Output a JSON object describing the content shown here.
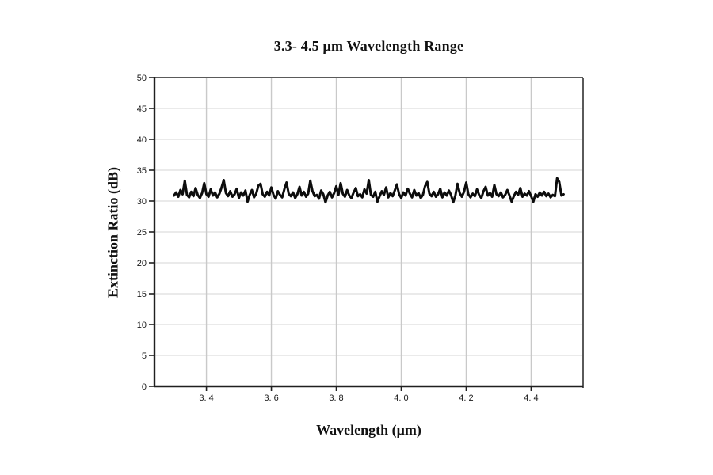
{
  "chart_data": {
    "type": "line",
    "title": "3.3- 4.5 μm Wavelength Range",
    "xlabel": "Wavelength (μm)",
    "ylabel": "Extinction Ratio (dB)",
    "xlim": [
      3.24,
      4.56
    ],
    "ylim": [
      0,
      50
    ],
    "grid": true,
    "legend": "none",
    "xticks": [
      3.4,
      3.6,
      3.8,
      4.0,
      4.2,
      4.4
    ],
    "xtick_labels": [
      "3. 4",
      "3. 6",
      "3. 8",
      "4. 0",
      "4. 2",
      "4. 4"
    ],
    "yticks": [
      0,
      5,
      10,
      15,
      20,
      25,
      30,
      35,
      40,
      45,
      50
    ],
    "ytick_labels": [
      "0",
      "5",
      "10",
      "15",
      "20",
      "25",
      "30",
      "35",
      "40",
      "45",
      "50"
    ],
    "style": {
      "line_color": "#0d0d0d",
      "line_width": 3,
      "hgrid_color": "#e4e4e4",
      "vgrid_color": "#c9c9c9",
      "axis_color": "#1f1f1f",
      "frame_color": "#5a5a5a",
      "tick_color": "#1f1f1f"
    },
    "series": [
      {
        "name": "Extinction Ratio",
        "x_start": 3.3,
        "x_end": 4.5,
        "mean_db": 31.2,
        "values": [
          30.9,
          31.4,
          30.7,
          31.8,
          31.1,
          33.3,
          31.0,
          30.6,
          31.5,
          30.8,
          32.1,
          31.0,
          30.5,
          31.3,
          32.9,
          31.1,
          30.7,
          31.9,
          30.9,
          31.4,
          30.6,
          31.2,
          32.2,
          33.4,
          31.3,
          30.8,
          31.6,
          30.7,
          31.1,
          32.0,
          30.5,
          31.4,
          30.9,
          31.7,
          29.9,
          31.0,
          31.8,
          30.6,
          31.2,
          32.5,
          32.8,
          31.1,
          30.7,
          31.5,
          30.9,
          32.2,
          31.0,
          30.4,
          31.6,
          31.0,
          30.6,
          31.9,
          33.0,
          31.2,
          30.8,
          31.4,
          30.5,
          31.1,
          32.3,
          30.9,
          31.5,
          30.7,
          31.2,
          33.3,
          31.6,
          30.8,
          31.0,
          30.4,
          31.7,
          31.1,
          29.8,
          30.9,
          31.5,
          30.6,
          31.3,
          32.4,
          31.0,
          32.9,
          31.2,
          30.7,
          31.8,
          30.9,
          30.5,
          31.4,
          32.1,
          30.8,
          31.1,
          30.6,
          31.9,
          31.2,
          33.4,
          31.0,
          30.7,
          31.5,
          29.9,
          30.8,
          31.6,
          31.0,
          32.2,
          30.6,
          31.3,
          30.8,
          31.7,
          32.7,
          31.1,
          30.5,
          31.4,
          30.9,
          32.0,
          31.2,
          30.6,
          31.8,
          30.9,
          31.3,
          30.5,
          31.0,
          32.4,
          33.1,
          31.2,
          30.8,
          31.5,
          30.7,
          31.1,
          32.0,
          30.6,
          31.4,
          30.9,
          31.7,
          31.0,
          29.8,
          30.9,
          32.8,
          31.3,
          30.7,
          31.5,
          33.0,
          31.1,
          30.6,
          31.2,
          30.8,
          31.9,
          31.0,
          30.5,
          31.6,
          32.3,
          30.9,
          31.3,
          30.7,
          32.6,
          31.1,
          30.8,
          31.4,
          30.6,
          31.0,
          31.8,
          30.9,
          29.9,
          30.8,
          31.5,
          31.0,
          32.1,
          30.7,
          31.2,
          30.9,
          31.6,
          30.8,
          29.9,
          31.1,
          30.7,
          31.4,
          30.9,
          31.5,
          30.8,
          31.2,
          30.6,
          31.0,
          30.8,
          33.7,
          33.1,
          30.9,
          31.1
        ]
      }
    ]
  }
}
